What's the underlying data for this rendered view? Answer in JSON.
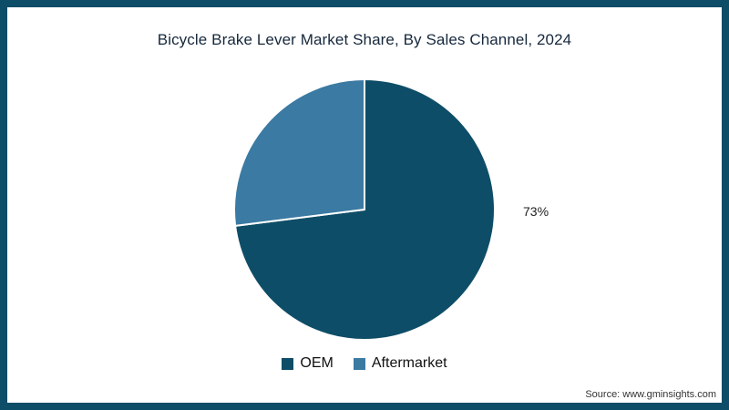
{
  "chart_data": {
    "type": "pie",
    "title": "Bicycle Brake Lever Market Share, By Sales Channel, 2024",
    "labels": [
      "OEM",
      "Aftermarket"
    ],
    "values": [
      73,
      27
    ],
    "colors": [
      "#0e4d67",
      "#3b7aa2"
    ],
    "data_labels": [
      "73%",
      ""
    ],
    "start_angle_deg": 0,
    "direction": "clockwise",
    "legend_position": "bottom",
    "slice_border_color": "#ffffff"
  },
  "footer": {
    "source": "Source: www.gminsights.com"
  },
  "theme": {
    "frame_color": "#0e4d67",
    "background": "#ffffff",
    "title_color": "#16283c"
  }
}
